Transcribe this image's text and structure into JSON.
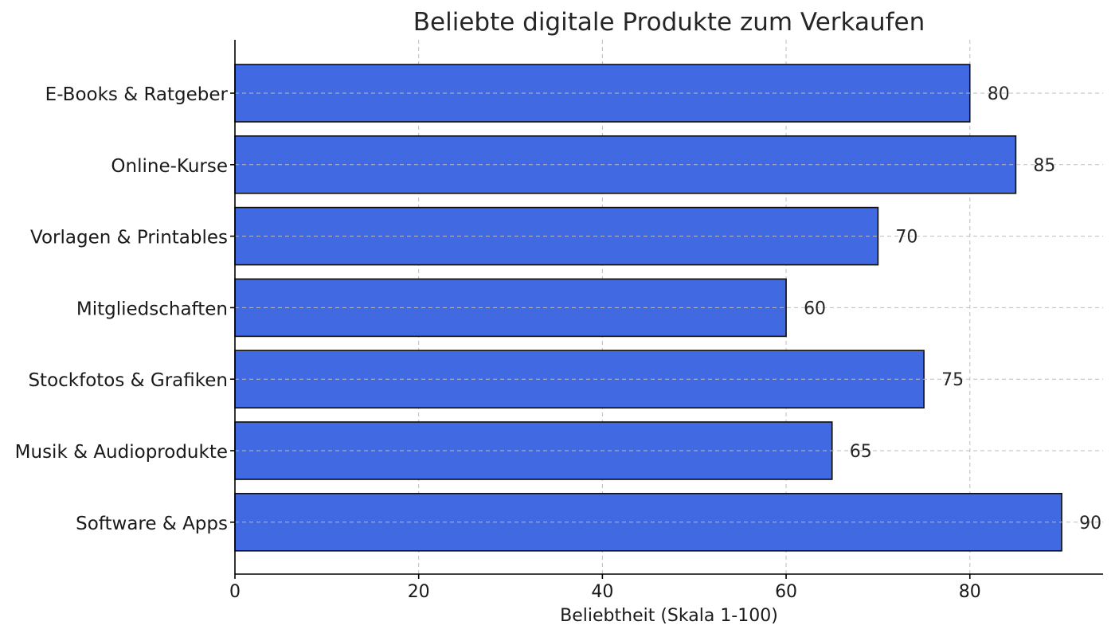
{
  "chart_data": {
    "type": "bar",
    "orientation": "horizontal",
    "title": "Beliebte digitale Produkte zum Verkaufen",
    "xlabel": "Beliebtheit (Skala 1-100)",
    "ylabel": "",
    "categories": [
      "E-Books & Ratgeber",
      "Online-Kurse",
      "Vorlagen & Printables",
      "Mitgliedschaften",
      "Stockfotos & Grafiken",
      "Musik & Audioprodukte",
      "Software & Apps"
    ],
    "values": [
      80,
      85,
      70,
      60,
      75,
      65,
      90
    ],
    "value_labels": [
      "80",
      "85",
      "70",
      "60",
      "75",
      "65",
      "90"
    ],
    "xlim": [
      0,
      94.5
    ],
    "xticks": [
      0,
      20,
      40,
      60,
      80
    ],
    "xtick_labels": [
      "0",
      "20",
      "40",
      "60",
      "80"
    ],
    "grid": true,
    "bar_color": "#4169E1",
    "bar_edge_color": "#0d0d0d"
  }
}
